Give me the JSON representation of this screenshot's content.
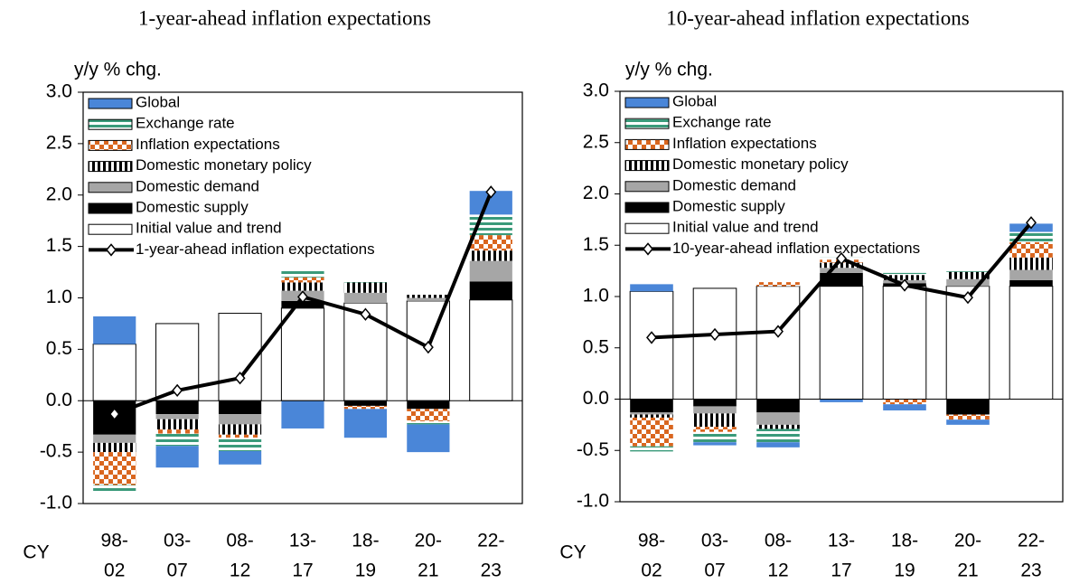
{
  "chart_data": [
    {
      "type": "bar",
      "stacked": true,
      "title": "1-year-ahead inflation expectations",
      "y_label": "y/y % chg.",
      "x_label": "CY",
      "categories": [
        [
          "98-",
          "02"
        ],
        [
          "03-",
          "07"
        ],
        [
          "08-",
          "12"
        ],
        [
          "13-",
          "17"
        ],
        [
          "18-",
          "19"
        ],
        [
          "20-",
          "21"
        ],
        [
          "22-",
          "23"
        ]
      ],
      "ylim": [
        -1.0,
        3.0
      ],
      "yticks": [
        {
          "value": -1,
          "label": "-1.0"
        },
        {
          "value": -0.5,
          "label": "-0.5"
        },
        {
          "value": 0,
          "label": "0.0"
        },
        {
          "value": 0.5,
          "label": "0.5"
        },
        {
          "value": 1,
          "label": "1.0"
        },
        {
          "value": 1.5,
          "label": "1.5"
        },
        {
          "value": 2,
          "label": "2.0"
        },
        {
          "value": 2.5,
          "label": "2.5"
        },
        {
          "value": 3,
          "label": "3.0"
        }
      ],
      "legend": "upper left",
      "series": [
        {
          "name": "Global",
          "color": "#4a86d8",
          "values": [
            0.27,
            -0.21,
            -0.13,
            -0.27,
            -0.28,
            -0.27,
            0.23
          ]
        },
        {
          "name": "Exchange rate",
          "color": "#3a9a7a",
          "pattern": "hstripes",
          "values": [
            -0.08,
            -0.12,
            -0.13,
            0.07,
            0.03,
            -0.03,
            0.2
          ]
        },
        {
          "name": "Inflation expectations",
          "color": "#d9661f",
          "pattern": "checker",
          "values": [
            -0.32,
            -0.04,
            -0.03,
            0.05,
            -0.03,
            -0.12,
            0.15
          ]
        },
        {
          "name": "Domestic monetary policy",
          "color": "#000000",
          "pattern": "vstripes",
          "values": [
            -0.09,
            -0.1,
            -0.1,
            0.08,
            0.1,
            0.03,
            0.1
          ]
        },
        {
          "name": "Domestic demand",
          "color": "#a6a6a6",
          "values": [
            -0.08,
            -0.05,
            -0.1,
            0.1,
            0.1,
            0.03,
            0.2
          ]
        },
        {
          "name": "Domestic supply",
          "color": "#000000",
          "values": [
            -0.33,
            -0.13,
            -0.13,
            0.07,
            -0.05,
            -0.08,
            0.18
          ]
        },
        {
          "name": "Initial value and trend",
          "color": "#ffffff",
          "values": [
            0.55,
            0.75,
            0.85,
            0.9,
            0.95,
            0.97,
            0.98
          ]
        },
        {
          "name": "1-year-ahead inflation expectations",
          "type": "line",
          "color": "#000000",
          "values": [
            -0.13,
            0.1,
            0.22,
            1.01,
            0.84,
            0.52,
            2.03
          ]
        }
      ]
    },
    {
      "type": "bar",
      "stacked": true,
      "title": "10-year-ahead inflation expectations",
      "y_label": "y/y % chg.",
      "x_label": "CY",
      "categories": [
        [
          "98-",
          "02"
        ],
        [
          "03-",
          "07"
        ],
        [
          "08-",
          "12"
        ],
        [
          "13-",
          "17"
        ],
        [
          "18-",
          "19"
        ],
        [
          "20-",
          "21"
        ],
        [
          "22-",
          "23"
        ]
      ],
      "ylim": [
        -1.0,
        3.0
      ],
      "yticks": [
        {
          "value": -1,
          "label": "-1.0"
        },
        {
          "value": -0.5,
          "label": "-0.5"
        },
        {
          "value": 0,
          "label": "0.0"
        },
        {
          "value": 0.5,
          "label": "0.5"
        },
        {
          "value": 1,
          "label": "1.0"
        },
        {
          "value": 1.5,
          "label": "1.5"
        },
        {
          "value": 2,
          "label": "2.0"
        },
        {
          "value": 2.5,
          "label": "2.5"
        },
        {
          "value": 3,
          "label": "3.0"
        }
      ],
      "legend": "upper left",
      "series": [
        {
          "name": "Global",
          "color": "#4a86d8",
          "values": [
            0.07,
            -0.03,
            -0.05,
            -0.03,
            -0.06,
            -0.05,
            0.08
          ]
        },
        {
          "name": "Exchange rate",
          "color": "#3a9a7a",
          "pattern": "hstripes",
          "values": [
            -0.05,
            -0.1,
            -0.13,
            0.02,
            0.02,
            0.01,
            0.1
          ]
        },
        {
          "name": "Inflation expectations",
          "color": "#d9661f",
          "pattern": "checker",
          "values": [
            -0.28,
            -0.05,
            0.04,
            0.03,
            -0.05,
            -0.05,
            0.15
          ]
        },
        {
          "name": "Domestic monetary policy",
          "color": "#000000",
          "pattern": "vstripes",
          "values": [
            -0.03,
            -0.13,
            -0.04,
            0.05,
            0.05,
            0.07,
            0.12
          ]
        },
        {
          "name": "Domestic demand",
          "color": "#a6a6a6",
          "values": [
            -0.02,
            -0.07,
            -0.12,
            0.05,
            0.03,
            0.07,
            0.1
          ]
        },
        {
          "name": "Domestic supply",
          "color": "#000000",
          "values": [
            -0.13,
            -0.07,
            -0.13,
            0.13,
            0.03,
            -0.15,
            0.06
          ]
        },
        {
          "name": "Initial value and trend",
          "color": "#ffffff",
          "values": [
            1.05,
            1.08,
            1.1,
            1.1,
            1.1,
            1.1,
            1.1
          ]
        },
        {
          "name": "10-year-ahead inflation expectations",
          "type": "line",
          "color": "#000000",
          "values": [
            0.6,
            0.63,
            0.66,
            1.37,
            1.11,
            0.99,
            1.72
          ]
        }
      ]
    }
  ]
}
